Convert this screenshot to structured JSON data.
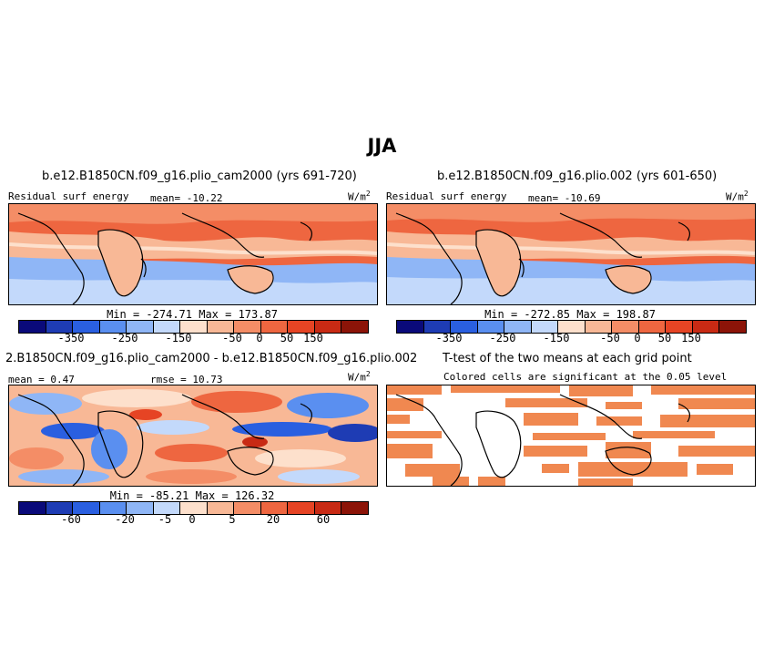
{
  "title": "JJA",
  "panels": {
    "p1": {
      "title": "b.e12.B1850CN.f09_g16.plio_cam2000 (yrs 691-720)",
      "var_label": "Residual surf energy",
      "mean": "mean= -10.22",
      "units": "W/m",
      "units_sup": "2",
      "minmax": "Min = -274.71 Max = 173.87"
    },
    "p2": {
      "title": "b.e12.B1850CN.f09_g16.plio.002 (yrs 601-650)",
      "var_label": "Residual surf energy",
      "mean": "mean= -10.69",
      "units": "W/m",
      "units_sup": "2",
      "minmax": "Min = -272.85 Max = 198.87"
    },
    "p3": {
      "title": "2.B1850CN.f09_g16.plio_cam2000 - b.e12.B1850CN.f09_g16.plio.002",
      "mean": "mean =   0.47",
      "rmse": "rmse =  10.73",
      "units": "W/m",
      "units_sup": "2",
      "minmax": "Min = -85.21 Max = 126.32"
    },
    "p4": {
      "title": "T-test of the two means at each grid point",
      "subtitle": "Colored cells are significant at the 0.05 level"
    }
  },
  "colorbars": {
    "absolute": {
      "colors": [
        "#0a0a7a",
        "#1e3cb4",
        "#2a5fe0",
        "#5a8ff0",
        "#8fb6f6",
        "#c3d9fb",
        "#fde0cc",
        "#f8b896",
        "#f48d66",
        "#ee6640",
        "#e64424",
        "#c82a14",
        "#8c1408"
      ],
      "ticks": [
        "-350",
        "-250",
        "-150",
        "-50",
        "0",
        "50",
        "150"
      ]
    },
    "difference": {
      "colors": [
        "#0a0a7a",
        "#1e3cb4",
        "#2a5fe0",
        "#5a8ff0",
        "#8fb6f6",
        "#c3d9fb",
        "#fde0cc",
        "#f8b896",
        "#f48d66",
        "#ee6640",
        "#e64424",
        "#c82a14",
        "#8c1408"
      ],
      "ticks": [
        "-60",
        "-20",
        "-5",
        "0",
        "5",
        "20",
        "60"
      ]
    }
  },
  "colors": {
    "ttest_fill": "#f08850",
    "coast": "#000000"
  }
}
